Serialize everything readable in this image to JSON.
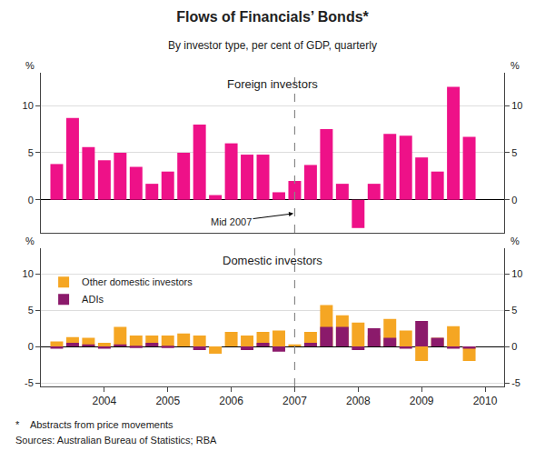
{
  "title": "Flows of Financials’ Bonds*",
  "subtitle": "By investor type, per cent of GDP, quarterly",
  "footnotes": [
    "*    Abstracts from price movements",
    "Sources: Australian Bureau of Statistics; RBA"
  ],
  "chart_data": [
    {
      "type": "bar",
      "title": "Foreign investors",
      "x": [
        2003.25,
        2003.5,
        2003.75,
        2004.0,
        2004.25,
        2004.5,
        2004.75,
        2005.0,
        2005.25,
        2005.5,
        2005.75,
        2006.0,
        2006.25,
        2006.5,
        2006.75,
        2007.0,
        2007.25,
        2007.5,
        2007.75,
        2008.0,
        2008.25,
        2008.5,
        2008.75,
        2009.0,
        2009.25,
        2009.5,
        2009.75
      ],
      "values": [
        3.8,
        8.7,
        5.6,
        4.2,
        5.0,
        3.5,
        1.7,
        3.0,
        5.0,
        8.0,
        0.5,
        6.0,
        4.8,
        4.8,
        0.8,
        2.0,
        3.7,
        7.5,
        1.7,
        -3.0,
        1.7,
        7.0,
        6.8,
        4.5,
        3.0,
        12.0,
        6.7
      ],
      "color": "#EE1188",
      "xlim": [
        2003.0,
        2010.3
      ],
      "ylim": [
        -3.5,
        13.5
      ],
      "yticks": [
        0,
        5,
        10
      ],
      "y2lim": [
        -3.5,
        13.5
      ],
      "y2ticks": [
        0,
        5,
        10
      ],
      "ylabel": "%",
      "y2label": "%",
      "grid": "y",
      "tick_labels": "y",
      "annotations": [
        {
          "text": "Mid 2007",
          "x": 2007.0
        }
      ]
    },
    {
      "type": "bar",
      "title": "Domestic investors",
      "x": [
        2003.25,
        2003.5,
        2003.75,
        2004.0,
        2004.25,
        2004.5,
        2004.75,
        2005.0,
        2005.25,
        2005.5,
        2005.75,
        2006.0,
        2006.25,
        2006.5,
        2006.75,
        2007.0,
        2007.25,
        2007.5,
        2007.75,
        2008.0,
        2008.25,
        2008.5,
        2008.75,
        2009.0,
        2009.25,
        2009.5,
        2009.75
      ],
      "series": [
        {
          "name": "Other domestic investors",
          "color": "#F5A623",
          "values": [
            0.7,
            1.3,
            1.2,
            0.5,
            2.7,
            1.5,
            1.5,
            1.5,
            1.8,
            1.5,
            -1.0,
            2.0,
            1.5,
            2.0,
            2.2,
            0.3,
            2.0,
            5.7,
            4.3,
            3.3,
            1.5,
            3.8,
            2.2,
            -2.0,
            1.2,
            2.8,
            -2.0
          ]
        },
        {
          "name": "ADIs",
          "color": "#8B1A6B",
          "values": [
            -0.3,
            0.5,
            0.3,
            -0.3,
            0.3,
            -0.2,
            0.5,
            -0.2,
            0.0,
            -0.5,
            0.0,
            0.0,
            -0.5,
            0.5,
            -0.7,
            0.0,
            0.5,
            2.7,
            2.7,
            -0.5,
            2.5,
            1.2,
            -0.3,
            3.5,
            1.2,
            -0.3,
            -0.3
          ]
        }
      ],
      "stacked": false,
      "legend": "upper left",
      "xlim": [
        2003.0,
        2010.3
      ],
      "xticks": [
        2004,
        2005,
        2006,
        2007,
        2008,
        2009,
        2010
      ],
      "ylim": [
        -5.5,
        13.5
      ],
      "yticks": [
        -5,
        0,
        5,
        10
      ],
      "y2lim": [
        -5.5,
        13.5
      ],
      "y2ticks": [
        -5,
        0,
        5,
        10
      ],
      "ylabel": "%",
      "y2label": "%",
      "grid": "y"
    }
  ]
}
